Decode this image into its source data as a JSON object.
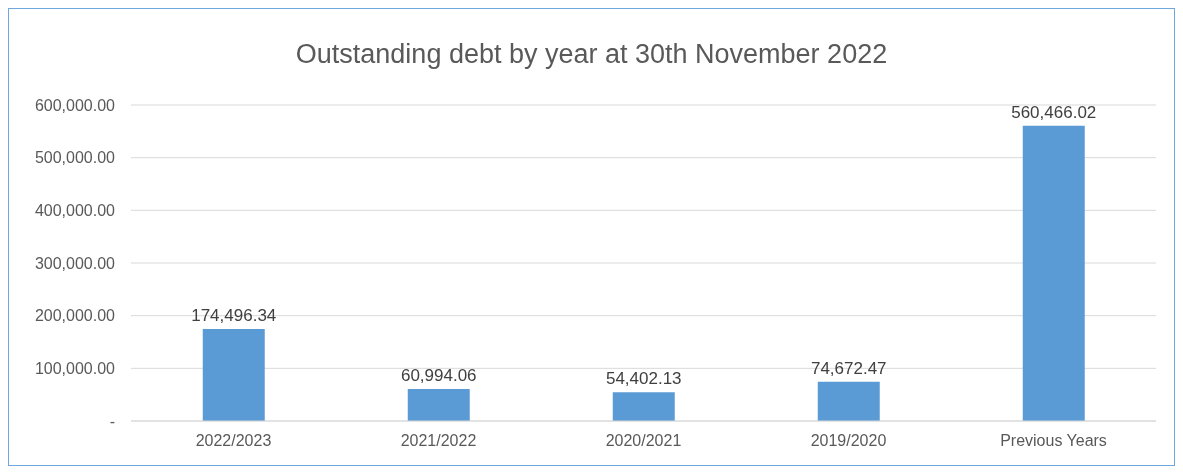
{
  "chart_data": {
    "type": "bar",
    "title": "Outstanding debt by year at 30th November 2022",
    "categories": [
      "2022/2023",
      "2021/2022",
      "2020/2021",
      "2019/2020",
      "Previous Years"
    ],
    "values": [
      174496.34,
      60994.06,
      54402.13,
      74672.47,
      560466.02
    ],
    "value_labels": [
      "174,496.34",
      "60,994.06",
      "54,402.13",
      "74,672.47",
      "560,466.02"
    ],
    "color": "#5b9bd5",
    "ylim": [
      0,
      600000
    ],
    "yticks": [
      {
        "value": 0,
        "label": "-"
      },
      {
        "value": 100000,
        "label": "100,000.00"
      },
      {
        "value": 200000,
        "label": "200,000.00"
      },
      {
        "value": 300000,
        "label": "300,000.00"
      },
      {
        "value": 400000,
        "label": "400,000.00"
      },
      {
        "value": 500000,
        "label": "500,000.00"
      },
      {
        "value": 600000,
        "label": "600,000.00"
      }
    ],
    "grid": "y",
    "legend": false
  }
}
